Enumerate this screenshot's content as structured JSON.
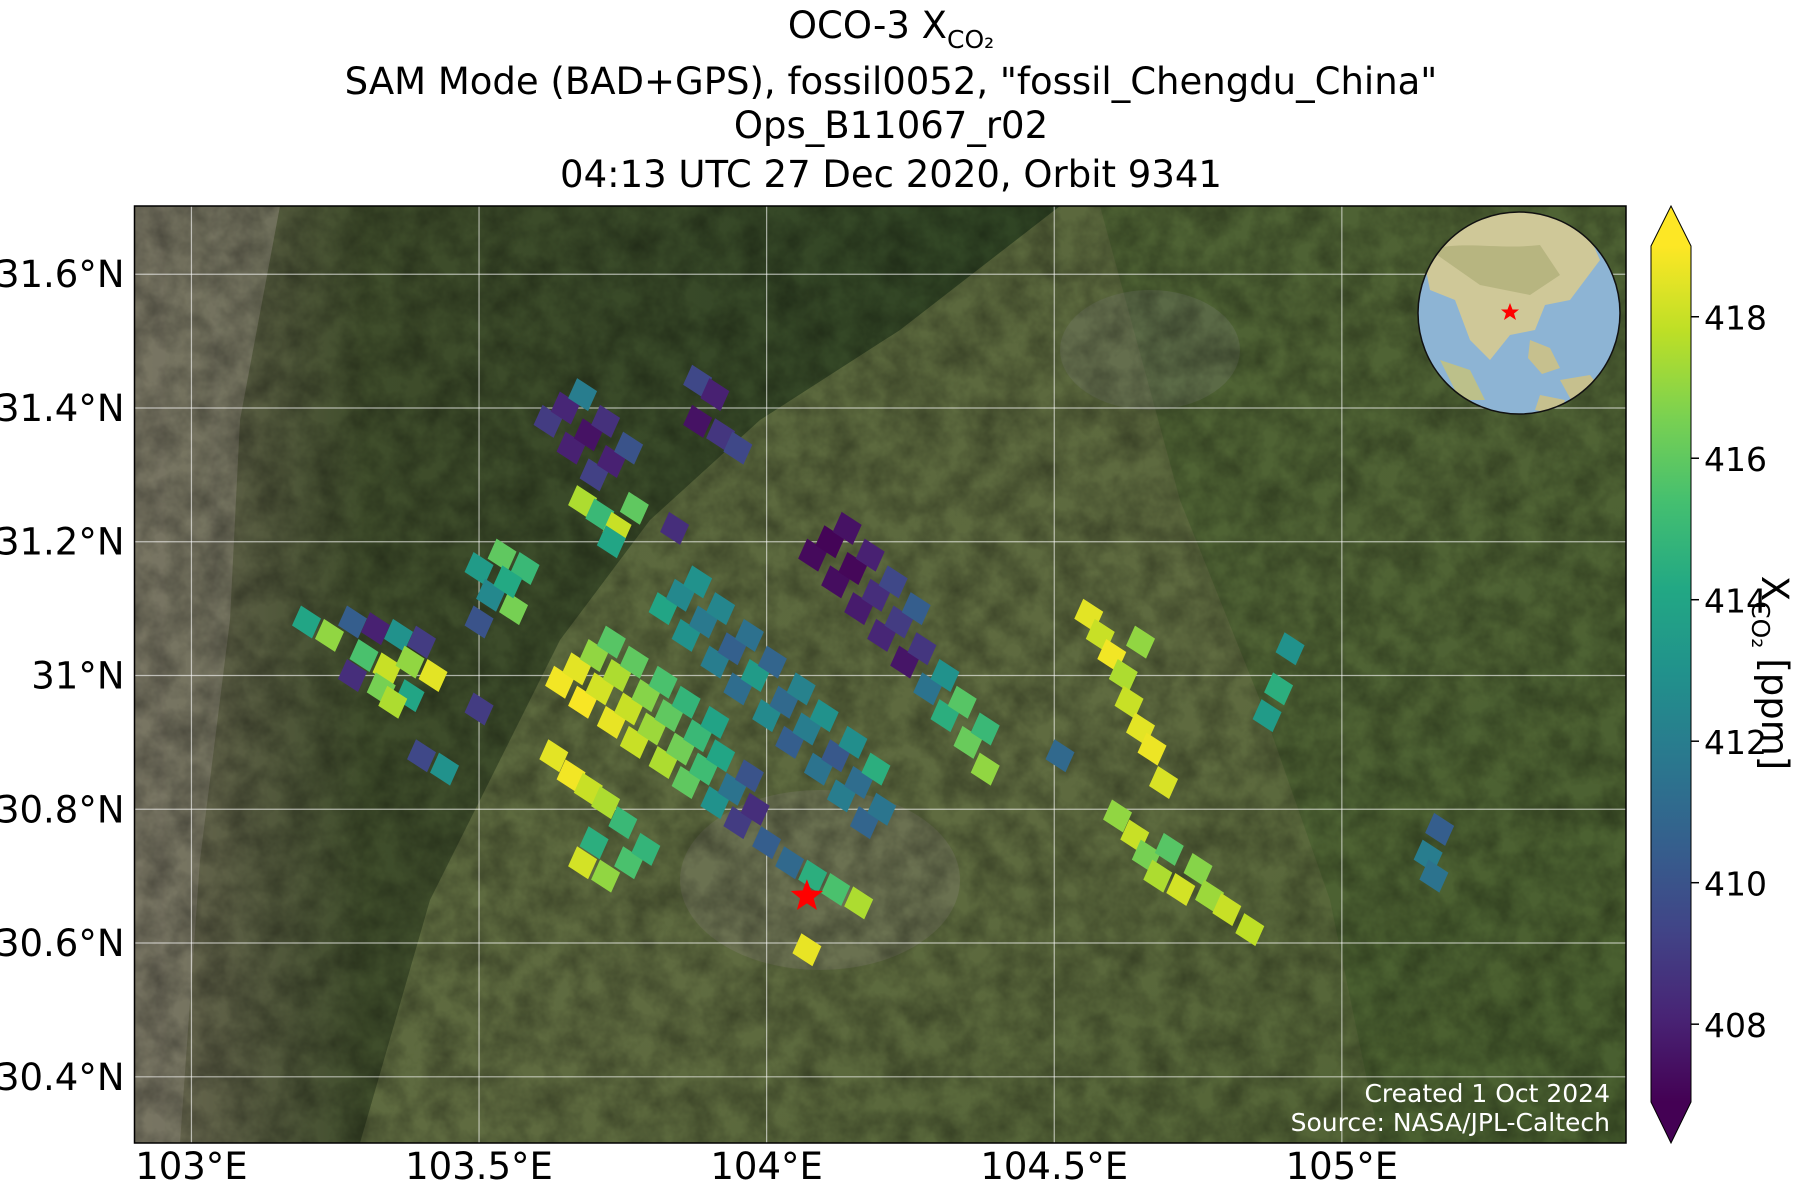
{
  "chart_data": {
    "type": "map",
    "title": "OCO-3 X",
    "title_subscript": "CO₂",
    "subtitle_lines": [
      "SAM Mode (BAD+GPS), fossil0052, \"fossil_Chengdu_China\"",
      "Ops_B11067_r02",
      "04:13 UTC 27 Dec 2020, Orbit 9341"
    ],
    "xlim": [
      102.901,
      105.494
    ],
    "ylim": [
      30.301,
      31.702
    ],
    "xticks": [
      {
        "value": 103,
        "label": "103°E"
      },
      {
        "value": 103.5,
        "label": "103.5°E"
      },
      {
        "value": 104,
        "label": "104°E"
      },
      {
        "value": 104.5,
        "label": "104.5°E"
      },
      {
        "value": 105,
        "label": "105°E"
      }
    ],
    "yticks": [
      {
        "value": 30.4,
        "label": "30.4°N"
      },
      {
        "value": 30.6,
        "label": "30.6°N"
      },
      {
        "value": 30.8,
        "label": "30.8°N"
      },
      {
        "value": 31,
        "label": "31°N"
      },
      {
        "value": 31.2,
        "label": "31.2°N"
      },
      {
        "value": 31.4,
        "label": "31.4°N"
      },
      {
        "value": 31.6,
        "label": "31.6°N"
      }
    ],
    "grid": true,
    "colormap": "viridis",
    "clim": [
      406.9,
      419
    ],
    "cticks": [
      408,
      410,
      412,
      414,
      416,
      418
    ],
    "colorbar_label": "X",
    "colorbar_label_subscript": "CO₂",
    "colorbar_label_unit": "[ppm]",
    "target": {
      "x": 104.07,
      "y": 30.67,
      "color": "#ff0000"
    },
    "credits": [
      "Created 1 Oct 2024",
      "Source: NASA/JPL-Caltech"
    ],
    "soundings": [
      {
        "x": 103.64,
        "y": 30.99,
        "value": 418.8
      },
      {
        "x": 103.67,
        "y": 31.01,
        "value": 418.5
      },
      {
        "x": 103.7,
        "y": 31.03,
        "value": 417.0
      },
      {
        "x": 103.73,
        "y": 31.05,
        "value": 415.8
      },
      {
        "x": 103.68,
        "y": 30.96,
        "value": 418.9
      },
      {
        "x": 103.71,
        "y": 30.98,
        "value": 418.2
      },
      {
        "x": 103.74,
        "y": 31.0,
        "value": 417.5
      },
      {
        "x": 103.77,
        "y": 31.02,
        "value": 416.0
      },
      {
        "x": 103.73,
        "y": 30.93,
        "value": 418.6
      },
      {
        "x": 103.76,
        "y": 30.95,
        "value": 418.0
      },
      {
        "x": 103.79,
        "y": 30.97,
        "value": 416.8
      },
      {
        "x": 103.82,
        "y": 30.99,
        "value": 415.5
      },
      {
        "x": 103.77,
        "y": 30.9,
        "value": 418.0
      },
      {
        "x": 103.8,
        "y": 30.92,
        "value": 417.2
      },
      {
        "x": 103.83,
        "y": 30.94,
        "value": 416.0
      },
      {
        "x": 103.86,
        "y": 30.96,
        "value": 414.8
      },
      {
        "x": 103.82,
        "y": 30.87,
        "value": 417.5
      },
      {
        "x": 103.85,
        "y": 30.89,
        "value": 416.4
      },
      {
        "x": 103.88,
        "y": 30.91,
        "value": 415.0
      },
      {
        "x": 103.91,
        "y": 30.93,
        "value": 413.9
      },
      {
        "x": 103.86,
        "y": 30.84,
        "value": 416.0
      },
      {
        "x": 103.89,
        "y": 30.86,
        "value": 415.2
      },
      {
        "x": 103.92,
        "y": 30.88,
        "value": 414.0
      },
      {
        "x": 103.91,
        "y": 30.81,
        "value": 413.0
      },
      {
        "x": 103.94,
        "y": 30.83,
        "value": 411.5
      },
      {
        "x": 103.97,
        "y": 30.85,
        "value": 410.0
      },
      {
        "x": 103.95,
        "y": 30.78,
        "value": 409.0
      },
      {
        "x": 103.98,
        "y": 30.8,
        "value": 408.5
      },
      {
        "x": 104.0,
        "y": 30.75,
        "value": 410.5
      },
      {
        "x": 104.04,
        "y": 30.72,
        "value": 411.0
      },
      {
        "x": 104.08,
        "y": 30.7,
        "value": 414.5
      },
      {
        "x": 104.12,
        "y": 30.68,
        "value": 415.5
      },
      {
        "x": 104.16,
        "y": 30.66,
        "value": 417.5
      },
      {
        "x": 103.82,
        "y": 31.1,
        "value": 414.0
      },
      {
        "x": 103.85,
        "y": 31.12,
        "value": 412.5
      },
      {
        "x": 103.88,
        "y": 31.14,
        "value": 413.0
      },
      {
        "x": 103.86,
        "y": 31.06,
        "value": 413.0
      },
      {
        "x": 103.89,
        "y": 31.08,
        "value": 411.8
      },
      {
        "x": 103.92,
        "y": 31.1,
        "value": 412.4
      },
      {
        "x": 103.91,
        "y": 31.02,
        "value": 412.0
      },
      {
        "x": 103.94,
        "y": 31.04,
        "value": 410.6
      },
      {
        "x": 103.97,
        "y": 31.06,
        "value": 411.4
      },
      {
        "x": 103.95,
        "y": 30.98,
        "value": 411.2
      },
      {
        "x": 103.98,
        "y": 31.0,
        "value": 413.5
      },
      {
        "x": 104.01,
        "y": 31.02,
        "value": 410.8
      },
      {
        "x": 104.0,
        "y": 30.94,
        "value": 412.6
      },
      {
        "x": 104.03,
        "y": 30.96,
        "value": 411.0
      },
      {
        "x": 104.06,
        "y": 30.98,
        "value": 412.2
      },
      {
        "x": 104.04,
        "y": 30.9,
        "value": 410.5
      },
      {
        "x": 104.07,
        "y": 30.92,
        "value": 412.0
      },
      {
        "x": 104.1,
        "y": 30.94,
        "value": 413.0
      },
      {
        "x": 104.09,
        "y": 30.86,
        "value": 411.5
      },
      {
        "x": 104.12,
        "y": 30.88,
        "value": 410.2
      },
      {
        "x": 104.15,
        "y": 30.9,
        "value": 412.8
      },
      {
        "x": 104.13,
        "y": 30.82,
        "value": 412.0
      },
      {
        "x": 104.16,
        "y": 30.84,
        "value": 411.2
      },
      {
        "x": 104.19,
        "y": 30.86,
        "value": 414.5
      },
      {
        "x": 104.17,
        "y": 30.78,
        "value": 410.8
      },
      {
        "x": 104.2,
        "y": 30.8,
        "value": 411.6
      },
      {
        "x": 104.08,
        "y": 31.18,
        "value": 407.2
      },
      {
        "x": 104.11,
        "y": 31.2,
        "value": 407.0
      },
      {
        "x": 104.14,
        "y": 31.22,
        "value": 407.5
      },
      {
        "x": 104.12,
        "y": 31.14,
        "value": 407.3
      },
      {
        "x": 104.15,
        "y": 31.16,
        "value": 407.1
      },
      {
        "x": 104.18,
        "y": 31.18,
        "value": 408.0
      },
      {
        "x": 104.16,
        "y": 31.1,
        "value": 407.8
      },
      {
        "x": 104.19,
        "y": 31.12,
        "value": 408.5
      },
      {
        "x": 104.22,
        "y": 31.14,
        "value": 409.5
      },
      {
        "x": 104.2,
        "y": 31.06,
        "value": 408.2
      },
      {
        "x": 104.23,
        "y": 31.08,
        "value": 409.0
      },
      {
        "x": 104.26,
        "y": 31.1,
        "value": 410.5
      },
      {
        "x": 104.24,
        "y": 31.02,
        "value": 407.6
      },
      {
        "x": 104.27,
        "y": 31.04,
        "value": 408.8
      },
      {
        "x": 104.28,
        "y": 30.98,
        "value": 411.5
      },
      {
        "x": 104.31,
        "y": 31.0,
        "value": 413.0
      },
      {
        "x": 104.31,
        "y": 30.94,
        "value": 414.5
      },
      {
        "x": 104.34,
        "y": 30.96,
        "value": 415.8
      },
      {
        "x": 104.35,
        "y": 30.9,
        "value": 416.2
      },
      {
        "x": 104.38,
        "y": 30.92,
        "value": 415.0
      },
      {
        "x": 104.38,
        "y": 30.86,
        "value": 417.0
      },
      {
        "x": 103.62,
        "y": 31.38,
        "value": 409.0
      },
      {
        "x": 103.65,
        "y": 31.4,
        "value": 408.2
      },
      {
        "x": 103.68,
        "y": 31.42,
        "value": 412.0
      },
      {
        "x": 103.66,
        "y": 31.34,
        "value": 408.0
      },
      {
        "x": 103.69,
        "y": 31.36,
        "value": 407.5
      },
      {
        "x": 103.72,
        "y": 31.38,
        "value": 408.6
      },
      {
        "x": 103.7,
        "y": 31.3,
        "value": 409.2
      },
      {
        "x": 103.73,
        "y": 31.32,
        "value": 408.0
      },
      {
        "x": 103.76,
        "y": 31.34,
        "value": 410.0
      },
      {
        "x": 103.68,
        "y": 31.26,
        "value": 417.5
      },
      {
        "x": 103.71,
        "y": 31.24,
        "value": 415.0
      },
      {
        "x": 103.74,
        "y": 31.22,
        "value": 418.0
      },
      {
        "x": 103.77,
        "y": 31.25,
        "value": 416.0
      },
      {
        "x": 103.73,
        "y": 31.2,
        "value": 414.0
      },
      {
        "x": 103.88,
        "y": 31.44,
        "value": 409.5
      },
      {
        "x": 103.91,
        "y": 31.42,
        "value": 408.0
      },
      {
        "x": 103.88,
        "y": 31.38,
        "value": 407.5
      },
      {
        "x": 103.92,
        "y": 31.36,
        "value": 408.8
      },
      {
        "x": 103.95,
        "y": 31.34,
        "value": 409.5
      },
      {
        "x": 103.84,
        "y": 31.22,
        "value": 408.5
      },
      {
        "x": 103.2,
        "y": 31.08,
        "value": 414.0
      },
      {
        "x": 103.24,
        "y": 31.06,
        "value": 417.0
      },
      {
        "x": 103.28,
        "y": 31.08,
        "value": 410.5
      },
      {
        "x": 103.32,
        "y": 31.07,
        "value": 408.0
      },
      {
        "x": 103.36,
        "y": 31.06,
        "value": 413.0
      },
      {
        "x": 103.4,
        "y": 31.05,
        "value": 409.0
      },
      {
        "x": 103.3,
        "y": 31.03,
        "value": 415.5
      },
      {
        "x": 103.34,
        "y": 31.01,
        "value": 418.0
      },
      {
        "x": 103.38,
        "y": 31.02,
        "value": 417.0
      },
      {
        "x": 103.28,
        "y": 31.0,
        "value": 408.5
      },
      {
        "x": 103.33,
        "y": 30.98,
        "value": 416.5
      },
      {
        "x": 103.38,
        "y": 30.97,
        "value": 414.0
      },
      {
        "x": 103.42,
        "y": 31.0,
        "value": 418.5
      },
      {
        "x": 103.35,
        "y": 30.96,
        "value": 417.5
      },
      {
        "x": 103.5,
        "y": 31.16,
        "value": 413.5
      },
      {
        "x": 103.54,
        "y": 31.18,
        "value": 416.0
      },
      {
        "x": 103.58,
        "y": 31.16,
        "value": 415.0
      },
      {
        "x": 103.52,
        "y": 31.12,
        "value": 412.5
      },
      {
        "x": 103.56,
        "y": 31.1,
        "value": 416.5
      },
      {
        "x": 103.5,
        "y": 31.08,
        "value": 410.0
      },
      {
        "x": 103.55,
        "y": 31.14,
        "value": 414.2
      },
      {
        "x": 103.4,
        "y": 30.88,
        "value": 409.5
      },
      {
        "x": 103.44,
        "y": 30.86,
        "value": 413.0
      },
      {
        "x": 103.5,
        "y": 30.95,
        "value": 409.0
      },
      {
        "x": 103.63,
        "y": 30.88,
        "value": 418.5
      },
      {
        "x": 103.66,
        "y": 30.85,
        "value": 418.8
      },
      {
        "x": 103.69,
        "y": 30.83,
        "value": 418.0
      },
      {
        "x": 103.72,
        "y": 30.81,
        "value": 417.5
      },
      {
        "x": 103.75,
        "y": 30.78,
        "value": 415.0
      },
      {
        "x": 103.7,
        "y": 30.75,
        "value": 414.5
      },
      {
        "x": 103.68,
        "y": 30.72,
        "value": 418.2
      },
      {
        "x": 103.72,
        "y": 30.7,
        "value": 417.0
      },
      {
        "x": 103.76,
        "y": 30.72,
        "value": 415.5
      },
      {
        "x": 103.79,
        "y": 30.74,
        "value": 414.8
      },
      {
        "x": 104.07,
        "y": 30.59,
        "value": 418.6
      },
      {
        "x": 104.56,
        "y": 31.09,
        "value": 418.5
      },
      {
        "x": 104.58,
        "y": 31.06,
        "value": 418.0
      },
      {
        "x": 104.6,
        "y": 31.03,
        "value": 418.8
      },
      {
        "x": 104.62,
        "y": 31.0,
        "value": 417.5
      },
      {
        "x": 104.65,
        "y": 31.05,
        "value": 417.0
      },
      {
        "x": 104.63,
        "y": 30.96,
        "value": 418.0
      },
      {
        "x": 104.65,
        "y": 30.92,
        "value": 418.5
      },
      {
        "x": 104.67,
        "y": 30.89,
        "value": 418.7
      },
      {
        "x": 104.69,
        "y": 30.84,
        "value": 418.3
      },
      {
        "x": 104.61,
        "y": 30.79,
        "value": 417.0
      },
      {
        "x": 104.64,
        "y": 30.76,
        "value": 418.0
      },
      {
        "x": 104.66,
        "y": 30.73,
        "value": 416.5
      },
      {
        "x": 104.68,
        "y": 30.7,
        "value": 417.5
      },
      {
        "x": 104.7,
        "y": 30.74,
        "value": 415.8
      },
      {
        "x": 104.72,
        "y": 30.68,
        "value": 418.2
      },
      {
        "x": 104.75,
        "y": 30.71,
        "value": 416.8
      },
      {
        "x": 104.77,
        "y": 30.67,
        "value": 417.2
      },
      {
        "x": 104.8,
        "y": 30.65,
        "value": 418.0
      },
      {
        "x": 104.84,
        "y": 30.62,
        "value": 417.8
      },
      {
        "x": 104.91,
        "y": 31.04,
        "value": 413.0
      },
      {
        "x": 104.89,
        "y": 30.98,
        "value": 414.5
      },
      {
        "x": 104.87,
        "y": 30.94,
        "value": 413.5
      },
      {
        "x": 104.51,
        "y": 30.88,
        "value": 411.0
      },
      {
        "x": 105.17,
        "y": 30.77,
        "value": 410.5
      },
      {
        "x": 105.15,
        "y": 30.73,
        "value": 412.0
      },
      {
        "x": 105.16,
        "y": 30.7,
        "value": 411.5
      }
    ]
  }
}
